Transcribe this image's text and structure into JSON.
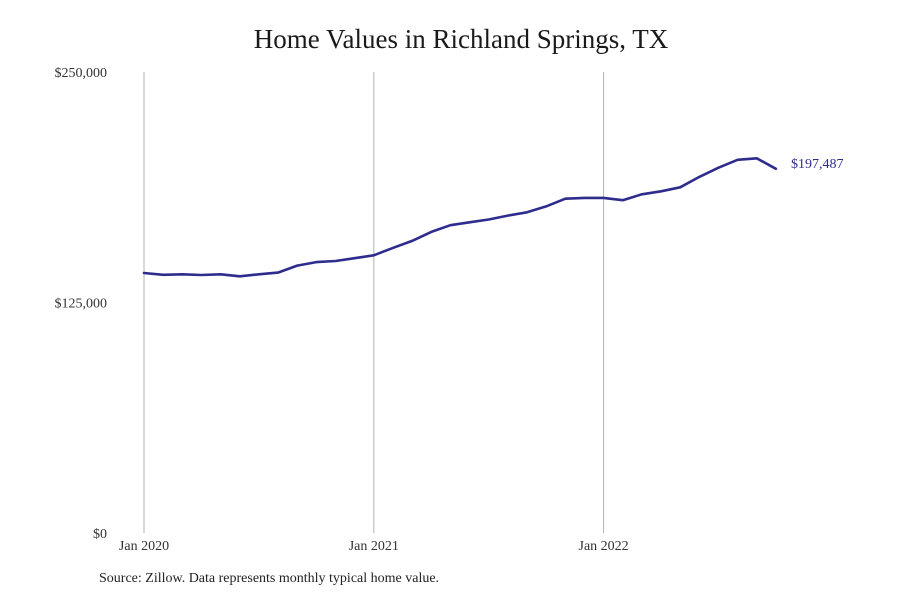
{
  "chart_data": {
    "type": "line",
    "title": "Home Values in Richland Springs, TX",
    "xlabel": "",
    "ylabel": "",
    "ylim": [
      0,
      250000
    ],
    "y_ticks": [
      {
        "value": 0,
        "label": "$0"
      },
      {
        "value": 125000,
        "label": "$125,000"
      },
      {
        "value": 250000,
        "label": "$250,000"
      }
    ],
    "x_ticks": [
      "Jan 2020",
      "Jan 2021",
      "Jan 2022"
    ],
    "x": [
      "2020-01",
      "2020-02",
      "2020-03",
      "2020-04",
      "2020-05",
      "2020-06",
      "2020-07",
      "2020-08",
      "2020-09",
      "2020-10",
      "2020-11",
      "2020-12",
      "2021-01",
      "2021-02",
      "2021-03",
      "2021-04",
      "2021-05",
      "2021-06",
      "2021-07",
      "2021-08",
      "2021-09",
      "2021-10",
      "2021-11",
      "2021-12",
      "2022-01",
      "2022-02",
      "2022-03",
      "2022-04",
      "2022-05",
      "2022-06",
      "2022-07",
      "2022-08",
      "2022-09",
      "2022-10"
    ],
    "series": [
      {
        "values": [
          141000,
          140000,
          140300,
          139900,
          140300,
          139200,
          140300,
          141200,
          145000,
          146900,
          147500,
          149000,
          150600,
          154600,
          158400,
          163300,
          166900,
          168500,
          170000,
          172100,
          173900,
          177100,
          181300,
          181700,
          181700,
          180500,
          183700,
          185300,
          187500,
          193100,
          198100,
          202400,
          203200,
          197487
        ],
        "color": "#2e2d8e",
        "end_label": "$197,487"
      }
    ],
    "vertical_gridlines": true,
    "horizontal_gridlines": false,
    "line_color": "#2e2d8e"
  },
  "footer": {
    "source": "Source: Zillow. Data represents monthly typical home value."
  }
}
